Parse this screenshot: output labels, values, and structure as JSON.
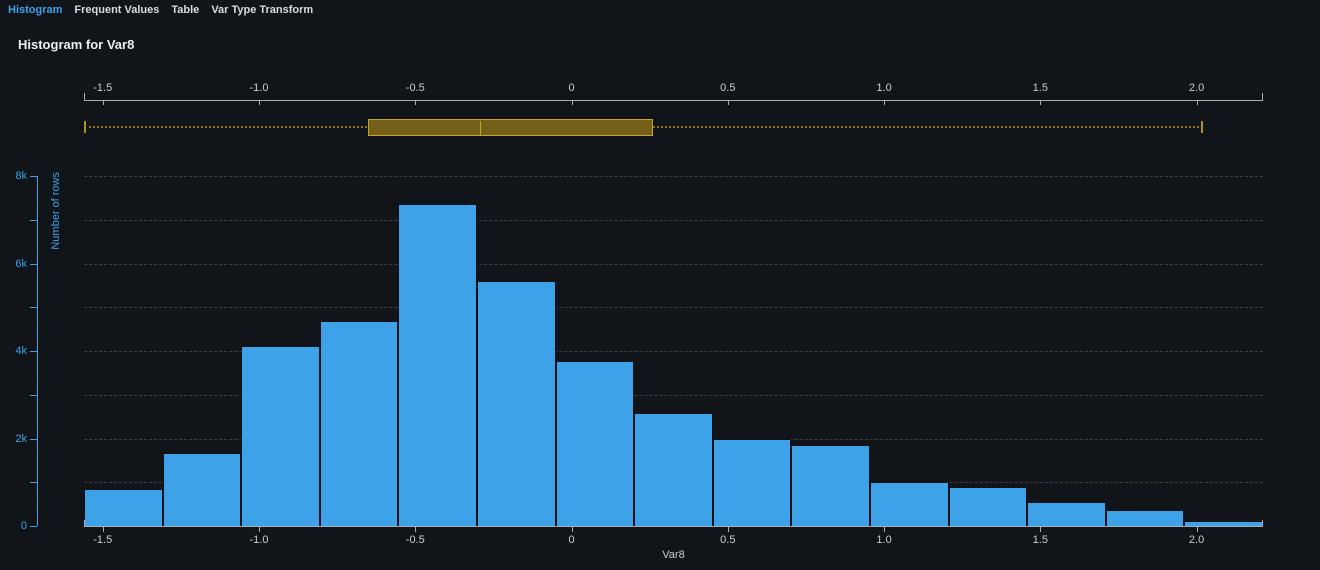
{
  "tabs": [
    {
      "label": "Histogram",
      "active": true
    },
    {
      "label": "Frequent Values",
      "active": false
    },
    {
      "label": "Table",
      "active": false
    },
    {
      "label": "Var Type Transform",
      "active": false
    }
  ],
  "title": "Histogram for Var8",
  "colors": {
    "background": "#11151a",
    "accent_blue": "#3da1e8",
    "bar_fill": "#3da2e8",
    "bar_border": "#0d1117",
    "axis_line_gray": "#a9afb6",
    "tick_label_gray": "#c9cdd2",
    "gridline_gray": "#3b4046",
    "box_fill": "#75601a",
    "box_border": "#c7a22e",
    "median_line": "#c7a22e",
    "whisker_dotted": "#8f741c",
    "whisker_cap": "#b08e26",
    "tab_active_blue": "#3da1e8",
    "tab_inactive": "#d9dbde",
    "title_white": "#eceef0"
  },
  "chart_data": [
    {
      "type": "boxplot",
      "orientation": "horizontal",
      "min": -1.56,
      "q1": -0.65,
      "median": -0.29,
      "q3": 0.26,
      "max": 2.02,
      "xlim": [
        -1.56,
        2.2125
      ],
      "x_ticks": [
        {
          "value": -1.5,
          "label": "-1.5"
        },
        {
          "value": -1.0,
          "label": "-1.0"
        },
        {
          "value": -0.5,
          "label": "-0.5"
        },
        {
          "value": 0,
          "label": "0"
        },
        {
          "value": 0.5,
          "label": "0.5"
        },
        {
          "value": 1.0,
          "label": "1.0"
        },
        {
          "value": 1.5,
          "label": "1.5"
        },
        {
          "value": 2.0,
          "label": "2.0"
        }
      ]
    },
    {
      "type": "bar",
      "subtype": "histogram",
      "xlabel": "Var8",
      "ylabel": "Number of rows",
      "bin_start": -1.56,
      "bin_width": 0.2515,
      "values": [
        850,
        1670,
        4110,
        4680,
        7370,
        5590,
        3780,
        2590,
        2000,
        1860,
        1000,
        900,
        540,
        360,
        120
      ],
      "xlim": [
        -1.56,
        2.2125
      ],
      "ylim": [
        0,
        8000
      ],
      "grid": "horizontal dashed every 1000",
      "legend": "none",
      "x_ticks": [
        {
          "value": -1.5,
          "label": "-1.5"
        },
        {
          "value": -1.0,
          "label": "-1.0"
        },
        {
          "value": -0.5,
          "label": "-0.5"
        },
        {
          "value": 0,
          "label": "0"
        },
        {
          "value": 0.5,
          "label": "0.5"
        },
        {
          "value": 1.0,
          "label": "1.0"
        },
        {
          "value": 1.5,
          "label": "1.5"
        },
        {
          "value": 2.0,
          "label": "2.0"
        }
      ],
      "y_ticks": [
        {
          "value": 0,
          "label": "0"
        },
        {
          "value": 1000,
          "label": ""
        },
        {
          "value": 2000,
          "label": "2k"
        },
        {
          "value": 3000,
          "label": ""
        },
        {
          "value": 4000,
          "label": "4k"
        },
        {
          "value": 5000,
          "label": ""
        },
        {
          "value": 6000,
          "label": "6k"
        },
        {
          "value": 7000,
          "label": ""
        },
        {
          "value": 8000,
          "label": "8k"
        }
      ]
    }
  ]
}
